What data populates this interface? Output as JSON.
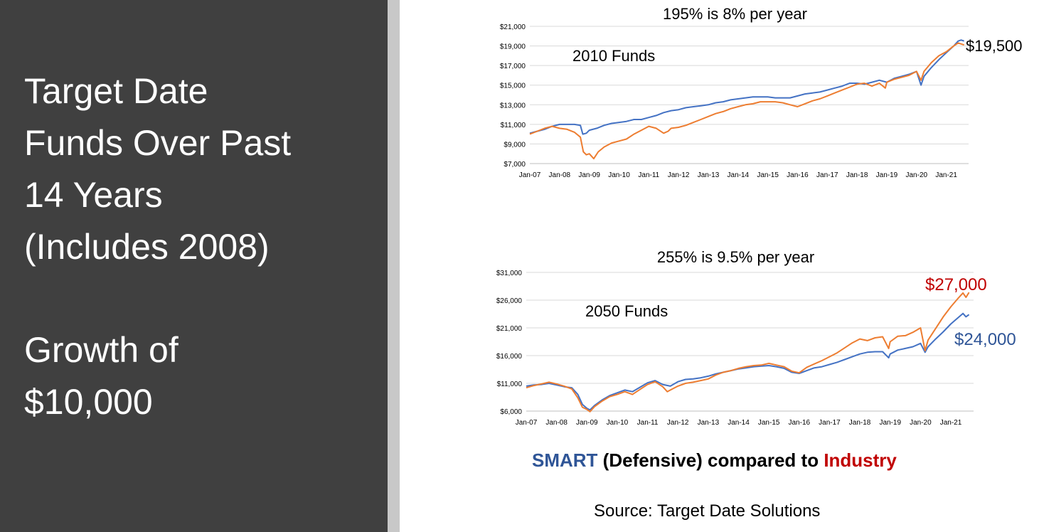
{
  "slide": {
    "title_lines": [
      "Target Date",
      "Funds Over Past",
      "14 Years",
      "(Includes 2008)"
    ],
    "subtitle_lines": [
      "Growth of",
      "$10,000"
    ]
  },
  "colors": {
    "smart": "#4472c4",
    "industry": "#ed7d31",
    "industry_label": "#c00000",
    "smart_label": "#2f5597",
    "grid": "#d9d9d9",
    "panel": "#404040"
  },
  "chart_data": [
    {
      "type": "line",
      "title": "195% is 8% per year",
      "annotation": "2010  Funds",
      "end_label": "$19,500",
      "x_tick_labels": [
        "Jan-07",
        "Jan-08",
        "Jan-09",
        "Jan-10",
        "Jan-11",
        "Jan-12",
        "Jan-13",
        "Jan-14",
        "Jan-15",
        "Jan-16",
        "Jan-17",
        "Jan-18",
        "Jan-19",
        "Jan-20",
        "Jan-21"
      ],
      "y_tick_labels": [
        "$7,000",
        "$9,000",
        "$11,000",
        "$13,000",
        "$15,000",
        "$17,000",
        "$19,000",
        "$21,000"
      ],
      "ylim": [
        7000,
        21000
      ],
      "xlim": [
        2007.0,
        2021.75
      ],
      "grid": true,
      "series": [
        {
          "key": "smart",
          "x": [
            2007.0,
            2007.25,
            2007.5,
            2007.75,
            2008.0,
            2008.25,
            2008.5,
            2008.7,
            2008.78,
            2008.9,
            2009.0,
            2009.25,
            2009.5,
            2009.75,
            2010.0,
            2010.25,
            2010.5,
            2010.75,
            2011.0,
            2011.25,
            2011.5,
            2011.75,
            2012.0,
            2012.25,
            2012.5,
            2012.75,
            2013.0,
            2013.25,
            2013.5,
            2013.75,
            2014.0,
            2014.25,
            2014.5,
            2014.75,
            2015.0,
            2015.25,
            2015.5,
            2015.75,
            2016.0,
            2016.25,
            2016.5,
            2016.75,
            2017.0,
            2017.25,
            2017.5,
            2017.75,
            2018.0,
            2018.25,
            2018.5,
            2018.75,
            2019.0,
            2019.25,
            2019.5,
            2019.75,
            2020.0,
            2020.15,
            2020.25,
            2020.5,
            2020.75,
            2021.0,
            2021.25,
            2021.4,
            2021.5,
            2021.6
          ],
          "y": [
            10100,
            10300,
            10500,
            10800,
            11000,
            11000,
            11000,
            10900,
            10000,
            10100,
            10400,
            10600,
            10900,
            11100,
            11200,
            11300,
            11500,
            11500,
            11700,
            11900,
            12200,
            12400,
            12500,
            12700,
            12800,
            12900,
            13000,
            13200,
            13300,
            13500,
            13600,
            13700,
            13800,
            13800,
            13800,
            13700,
            13700,
            13700,
            13900,
            14100,
            14200,
            14300,
            14500,
            14700,
            14900,
            15200,
            15200,
            15100,
            15300,
            15500,
            15300,
            15700,
            15900,
            16100,
            16400,
            15000,
            15900,
            16800,
            17600,
            18300,
            19000,
            19500,
            19600,
            19500
          ]
        },
        {
          "key": "industry",
          "x": [
            2007.0,
            2007.25,
            2007.5,
            2007.75,
            2008.0,
            2008.25,
            2008.5,
            2008.7,
            2008.8,
            2008.9,
            2009.0,
            2009.15,
            2009.3,
            2009.5,
            2009.75,
            2010.0,
            2010.25,
            2010.5,
            2010.75,
            2011.0,
            2011.25,
            2011.5,
            2011.65,
            2011.75,
            2012.0,
            2012.25,
            2012.5,
            2012.75,
            2013.0,
            2013.25,
            2013.5,
            2013.75,
            2014.0,
            2014.25,
            2014.5,
            2014.75,
            2015.0,
            2015.25,
            2015.5,
            2015.75,
            2016.0,
            2016.25,
            2016.5,
            2016.75,
            2017.0,
            2017.25,
            2017.5,
            2017.75,
            2018.0,
            2018.25,
            2018.5,
            2018.75,
            2018.95,
            2019.0,
            2019.25,
            2019.5,
            2019.75,
            2020.0,
            2020.15,
            2020.25,
            2020.5,
            2020.75,
            2021.0,
            2021.25,
            2021.4,
            2021.5,
            2021.6
          ],
          "y": [
            10000,
            10300,
            10600,
            10800,
            10600,
            10500,
            10200,
            9700,
            8200,
            7900,
            8000,
            7500,
            8200,
            8700,
            9100,
            9300,
            9500,
            10000,
            10400,
            10800,
            10600,
            10100,
            10300,
            10600,
            10700,
            10900,
            11200,
            11500,
            11800,
            12100,
            12300,
            12600,
            12800,
            13000,
            13100,
            13300,
            13300,
            13300,
            13200,
            13000,
            12800,
            13100,
            13400,
            13600,
            13900,
            14200,
            14500,
            14800,
            15100,
            15200,
            14900,
            15200,
            14700,
            15300,
            15600,
            15800,
            16000,
            16400,
            15500,
            16400,
            17300,
            18000,
            18400,
            19000,
            19300,
            19200,
            19100
          ]
        }
      ]
    },
    {
      "type": "line",
      "title": "255% is 9.5% per year",
      "annotation": "2050 Funds",
      "end_label_industry": "$27,000",
      "end_label_smart": "$24,000",
      "x_tick_labels": [
        "Jan-07",
        "Jan-08",
        "Jan-09",
        "Jan-10",
        "Jan-11",
        "Jan-12",
        "Jan-13",
        "Jan-14",
        "Jan-15",
        "Jan-16",
        "Jan-17",
        "Jan-18",
        "Jan-19",
        "Jan-20",
        "Jan-21"
      ],
      "y_tick_labels": [
        "$6,000",
        "$11,000",
        "$16,000",
        "$21,000",
        "$26,000",
        "$31,000"
      ],
      "ylim": [
        6000,
        31000
      ],
      "xlim": [
        2007.0,
        2021.75
      ],
      "grid": true,
      "series": [
        {
          "key": "smart",
          "x": [
            2007.0,
            2007.25,
            2007.5,
            2007.75,
            2008.0,
            2008.25,
            2008.5,
            2008.7,
            2008.85,
            2009.0,
            2009.1,
            2009.25,
            2009.5,
            2009.75,
            2010.0,
            2010.25,
            2010.5,
            2010.75,
            2011.0,
            2011.25,
            2011.5,
            2011.75,
            2012.0,
            2012.25,
            2012.5,
            2012.75,
            2013.0,
            2013.25,
            2013.5,
            2013.75,
            2014.0,
            2014.25,
            2014.5,
            2014.75,
            2015.0,
            2015.25,
            2015.5,
            2015.75,
            2016.0,
            2016.25,
            2016.5,
            2016.75,
            2017.0,
            2017.25,
            2017.5,
            2017.75,
            2018.0,
            2018.25,
            2018.5,
            2018.75,
            2018.95,
            2019.0,
            2019.25,
            2019.5,
            2019.75,
            2020.0,
            2020.15,
            2020.25,
            2020.5,
            2020.75,
            2021.0,
            2021.25,
            2021.4,
            2021.5,
            2021.6
          ],
          "y": [
            10500,
            10700,
            10800,
            11000,
            10700,
            10400,
            10200,
            9000,
            7200,
            6500,
            6200,
            7000,
            8000,
            8800,
            9300,
            9800,
            9500,
            10300,
            11100,
            11500,
            10800,
            10500,
            11300,
            11700,
            11800,
            12000,
            12300,
            12700,
            13000,
            13300,
            13600,
            13800,
            14000,
            14100,
            14200,
            14000,
            13700,
            13000,
            12800,
            13300,
            13800,
            14000,
            14400,
            14800,
            15300,
            15800,
            16300,
            16600,
            16700,
            16700,
            15600,
            16300,
            17000,
            17300,
            17600,
            18200,
            16600,
            17600,
            19000,
            20300,
            21700,
            22900,
            23600,
            23000,
            23400
          ]
        },
        {
          "key": "industry",
          "x": [
            2007.0,
            2007.25,
            2007.5,
            2007.75,
            2008.0,
            2008.25,
            2008.5,
            2008.7,
            2008.85,
            2009.0,
            2009.1,
            2009.25,
            2009.5,
            2009.75,
            2010.0,
            2010.25,
            2010.5,
            2010.75,
            2011.0,
            2011.25,
            2011.5,
            2011.65,
            2011.75,
            2012.0,
            2012.25,
            2012.5,
            2012.75,
            2013.0,
            2013.25,
            2013.5,
            2013.75,
            2014.0,
            2014.25,
            2014.5,
            2014.75,
            2015.0,
            2015.25,
            2015.5,
            2015.75,
            2016.0,
            2016.25,
            2016.5,
            2016.75,
            2017.0,
            2017.25,
            2017.5,
            2017.75,
            2018.0,
            2018.25,
            2018.5,
            2018.75,
            2018.95,
            2019.0,
            2019.25,
            2019.5,
            2019.75,
            2020.0,
            2020.15,
            2020.25,
            2020.5,
            2020.75,
            2021.0,
            2021.25,
            2021.4,
            2021.5,
            2021.6
          ],
          "y": [
            10200,
            10600,
            10900,
            11200,
            10900,
            10500,
            10000,
            8400,
            6700,
            6300,
            5900,
            6800,
            7800,
            8600,
            9000,
            9500,
            9000,
            9900,
            10800,
            11300,
            10400,
            9500,
            9800,
            10500,
            11000,
            11200,
            11500,
            11800,
            12500,
            13000,
            13300,
            13700,
            14000,
            14200,
            14300,
            14600,
            14300,
            14000,
            13200,
            12900,
            13900,
            14500,
            15100,
            15800,
            16500,
            17400,
            18300,
            19000,
            18700,
            19200,
            19400,
            17300,
            18500,
            19500,
            19600,
            20200,
            21000,
            16900,
            18800,
            20900,
            23000,
            24800,
            26400,
            27300,
            26500,
            27400
          ]
        }
      ]
    }
  ],
  "footer": {
    "smart_label": "SMART",
    "defensive_label": "(Defensive) compared to",
    "industry_label": "Industry",
    "source": "Source: Target Date Solutions"
  }
}
